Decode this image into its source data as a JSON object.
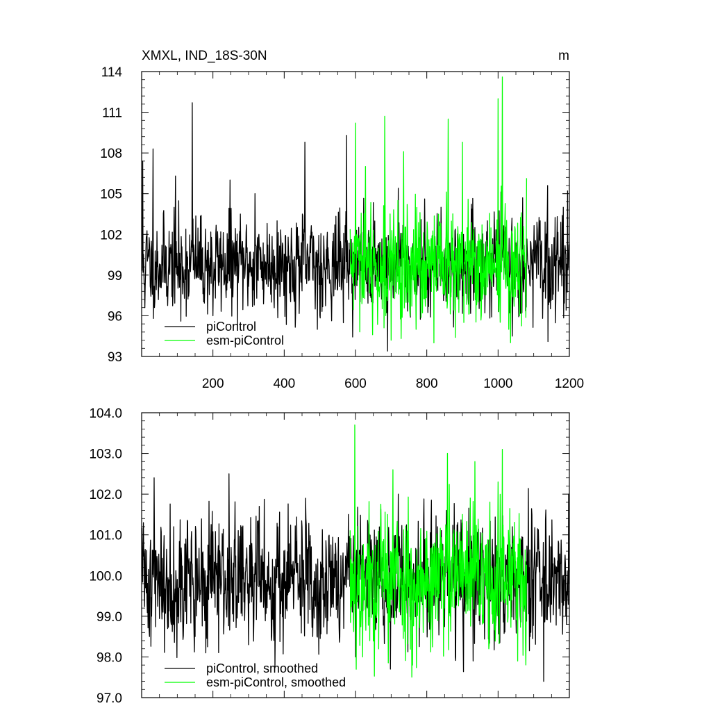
{
  "header": {
    "title": "XMXL, IND_18S-30N",
    "unit": "m"
  },
  "colors": {
    "picontrol": "#000000",
    "esm": "#00ff00",
    "axis": "#000000",
    "background": "#ffffff"
  },
  "chart_data": [
    {
      "type": "line",
      "panel": "top",
      "title": "XMXL, IND_18S-30N",
      "unit_label": "m",
      "xlim": [
        0,
        1200
      ],
      "ylim": [
        93,
        114
      ],
      "xticks": [
        200,
        400,
        600,
        800,
        1000,
        1200
      ],
      "xtick_labels": [
        "200",
        "400",
        "600",
        "800",
        "1000",
        "1200"
      ],
      "yticks": [
        93,
        96,
        99,
        102,
        105,
        108,
        111,
        114
      ],
      "ytick_labels": [
        "93",
        "96",
        "99",
        "102",
        "105",
        "108",
        "111",
        "114"
      ],
      "legend": {
        "position": "bottom-left",
        "entries": [
          "piControl",
          "esm-piControl"
        ]
      },
      "series": [
        {
          "name": "piControl",
          "color": "#000000",
          "x_start": 1,
          "x_end": 1200,
          "mean": 99.8,
          "std": 1.9,
          "seed": 11,
          "peaks": [
            {
              "x": 3,
              "y": 107.4
            },
            {
              "x": 9,
              "y": 96.6
            },
            {
              "x": 32,
              "y": 108.3
            },
            {
              "x": 95,
              "y": 106.3
            },
            {
              "x": 142,
              "y": 111.7
            },
            {
              "x": 110,
              "y": 95.6
            },
            {
              "x": 248,
              "y": 106.0
            },
            {
              "x": 200,
              "y": 96.0
            },
            {
              "x": 318,
              "y": 105.0
            },
            {
              "x": 380,
              "y": 103.0
            },
            {
              "x": 458,
              "y": 108.8
            },
            {
              "x": 493,
              "y": 95.0
            },
            {
              "x": 575,
              "y": 109.3
            },
            {
              "x": 690,
              "y": 93.4
            },
            {
              "x": 720,
              "y": 105.4
            },
            {
              "x": 840,
              "y": 104.0
            },
            {
              "x": 970,
              "y": 103.0
            },
            {
              "x": 1040,
              "y": 94.5
            },
            {
              "x": 1140,
              "y": 94.1
            },
            {
              "x": 1183,
              "y": 104.0
            },
            {
              "x": 1195,
              "y": 105.2
            }
          ]
        },
        {
          "name": "esm-piControl",
          "color": "#00ff00",
          "x_start": 585,
          "x_end": 1080,
          "mean": 99.6,
          "std": 2.2,
          "seed": 29,
          "peaks": [
            {
              "x": 600,
              "y": 110.2
            },
            {
              "x": 628,
              "y": 107.0
            },
            {
              "x": 648,
              "y": 94.6
            },
            {
              "x": 682,
              "y": 110.7
            },
            {
              "x": 700,
              "y": 94.2
            },
            {
              "x": 735,
              "y": 108.1
            },
            {
              "x": 770,
              "y": 95.0
            },
            {
              "x": 820,
              "y": 94.0
            },
            {
              "x": 860,
              "y": 110.5
            },
            {
              "x": 880,
              "y": 94.4
            },
            {
              "x": 900,
              "y": 108.8
            },
            {
              "x": 1000,
              "y": 112.0
            },
            {
              "x": 1012,
              "y": 113.6
            },
            {
              "x": 1030,
              "y": 95.0
            },
            {
              "x": 1060,
              "y": 96.0
            }
          ]
        }
      ]
    },
    {
      "type": "line",
      "panel": "bottom",
      "xlim": [
        0,
        1200
      ],
      "ylim": [
        97.0,
        104.0
      ],
      "xticks": [
        200,
        400,
        600,
        800,
        1000,
        1200
      ],
      "yticks": [
        97.0,
        98.0,
        99.0,
        100.0,
        101.0,
        102.0,
        103.0,
        104.0
      ],
      "ytick_labels": [
        "97.0",
        "98.0",
        "99.0",
        "100.0",
        "101.0",
        "102.0",
        "103.0",
        "104.0"
      ],
      "legend": {
        "position": "bottom-left",
        "entries": [
          "piControl, smoothed",
          "esm-piControl, smoothed"
        ]
      },
      "series": [
        {
          "name": "piControl, smoothed",
          "color": "#000000",
          "x_start": 1,
          "x_end": 1200,
          "mean": 99.9,
          "std": 0.85,
          "seed": 41,
          "peaks": [
            {
              "x": 5,
              "y": 101.3
            },
            {
              "x": 22,
              "y": 98.5
            },
            {
              "x": 35,
              "y": 102.4
            },
            {
              "x": 60,
              "y": 99.1
            },
            {
              "x": 90,
              "y": 101.2
            },
            {
              "x": 150,
              "y": 98.5
            },
            {
              "x": 180,
              "y": 98.1
            },
            {
              "x": 245,
              "y": 102.5
            },
            {
              "x": 300,
              "y": 98.3
            },
            {
              "x": 330,
              "y": 101.7
            },
            {
              "x": 365,
              "y": 98.5
            },
            {
              "x": 460,
              "y": 101.9
            },
            {
              "x": 480,
              "y": 98.5
            },
            {
              "x": 530,
              "y": 99.0
            },
            {
              "x": 580,
              "y": 101.5
            },
            {
              "x": 600,
              "y": 98.0
            },
            {
              "x": 680,
              "y": 99.0
            },
            {
              "x": 698,
              "y": 97.7
            },
            {
              "x": 720,
              "y": 102.0
            },
            {
              "x": 830,
              "y": 101.2
            },
            {
              "x": 880,
              "y": 98.0
            },
            {
              "x": 930,
              "y": 97.9
            },
            {
              "x": 1040,
              "y": 101.2
            },
            {
              "x": 1090,
              "y": 98.5
            },
            {
              "x": 1128,
              "y": 97.4
            },
            {
              "x": 1190,
              "y": 99.0
            },
            {
              "x": 1198,
              "y": 102.0
            }
          ]
        },
        {
          "name": "esm-piControl, smoothed",
          "color": "#00ff00",
          "x_start": 585,
          "x_end": 1080,
          "mean": 99.9,
          "std": 0.95,
          "seed": 53,
          "peaks": [
            {
              "x": 598,
              "y": 103.7
            },
            {
              "x": 620,
              "y": 98.0
            },
            {
              "x": 640,
              "y": 98.4
            },
            {
              "x": 690,
              "y": 101.5
            },
            {
              "x": 705,
              "y": 102.6
            },
            {
              "x": 760,
              "y": 97.8
            },
            {
              "x": 790,
              "y": 98.6
            },
            {
              "x": 822,
              "y": 100.8
            },
            {
              "x": 858,
              "y": 103.0
            },
            {
              "x": 900,
              "y": 101.5
            },
            {
              "x": 935,
              "y": 102.8
            },
            {
              "x": 1012,
              "y": 103.1
            },
            {
              "x": 1000,
              "y": 102.3
            },
            {
              "x": 1055,
              "y": 97.9
            },
            {
              "x": 975,
              "y": 98.3
            }
          ]
        }
      ]
    }
  ]
}
